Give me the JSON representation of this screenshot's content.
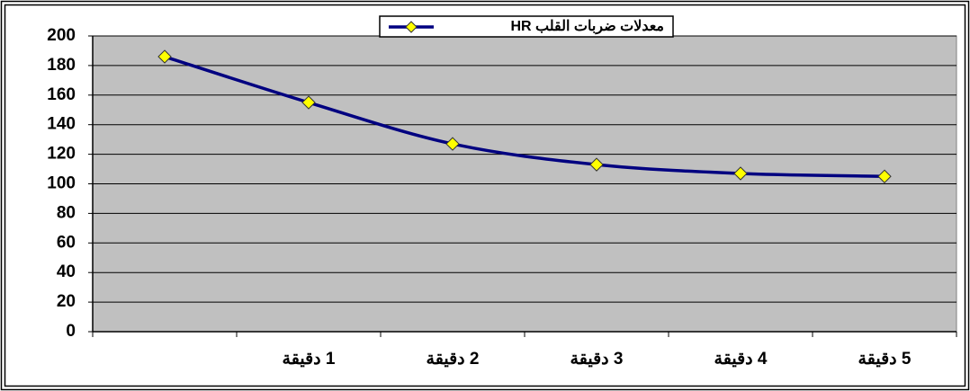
{
  "chart_data": {
    "type": "line",
    "categories": [
      null,
      "1 دقيقة",
      "2 دقيقة",
      "3 دقيقة",
      "4 دقيقة",
      "5 دقيقة"
    ],
    "series": [
      {
        "name": "معدلات ضربات القلب HR",
        "color": "#000080",
        "marker_color": "#ffff00",
        "values": [
          186,
          155,
          127,
          113,
          107,
          105
        ]
      }
    ],
    "ylim": [
      0,
      200
    ],
    "yticks": [
      0,
      20,
      40,
      60,
      80,
      100,
      120,
      140,
      160,
      180,
      200
    ],
    "grid": true,
    "legend": "top"
  }
}
